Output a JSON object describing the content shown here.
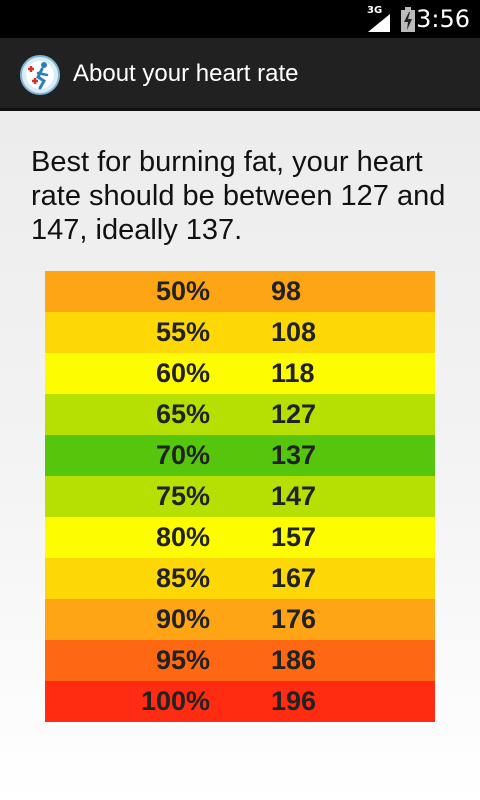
{
  "status_bar": {
    "network": "3G",
    "time": "3:56",
    "icons": [
      "signal-icon",
      "battery-charging-icon"
    ]
  },
  "action_bar": {
    "icon": "heart-runner-app-icon",
    "title": "About your heart rate"
  },
  "intro_text": "Best for burning fat, your heart rate should be between 127 and 147, ideally 137.",
  "zones": [
    {
      "percent": "50%",
      "bpm": "98",
      "color": "#FDA514"
    },
    {
      "percent": "55%",
      "bpm": "108",
      "color": "#FDD806"
    },
    {
      "percent": "60%",
      "bpm": "118",
      "color": "#FDFC01"
    },
    {
      "percent": "65%",
      "bpm": "127",
      "color": "#B6DF02"
    },
    {
      "percent": "70%",
      "bpm": "137",
      "color": "#55C60B"
    },
    {
      "percent": "75%",
      "bpm": "147",
      "color": "#B6DF02"
    },
    {
      "percent": "80%",
      "bpm": "157",
      "color": "#FDFC01"
    },
    {
      "percent": "85%",
      "bpm": "167",
      "color": "#FDD806"
    },
    {
      "percent": "90%",
      "bpm": "176",
      "color": "#FDA514"
    },
    {
      "percent": "95%",
      "bpm": "186",
      "color": "#FE6812"
    },
    {
      "percent": "100%",
      "bpm": "196",
      "color": "#FF2C12"
    }
  ]
}
